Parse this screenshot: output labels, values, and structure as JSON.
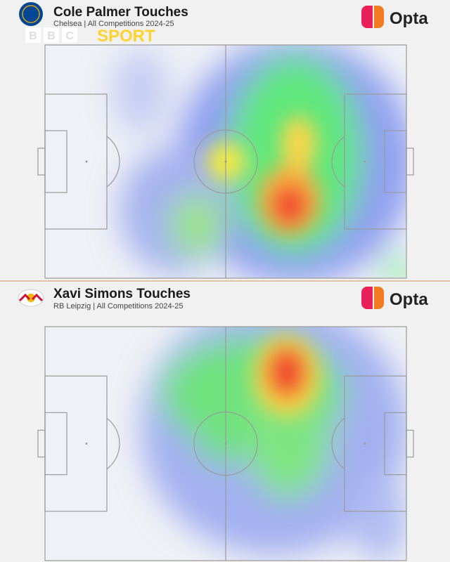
{
  "panels": [
    {
      "title": "Cole Palmer Touches",
      "subtitle": "Chelsea | All Competitions 2024-25",
      "brand": "Opta"
    },
    {
      "title": "Xavi Simons Touches",
      "subtitle": "RB Leipzig | All Competitions 2024-25",
      "brand": "Opta"
    }
  ],
  "broadcaster": {
    "letters": [
      "B",
      "B",
      "C"
    ],
    "sport": "SPORT"
  }
}
